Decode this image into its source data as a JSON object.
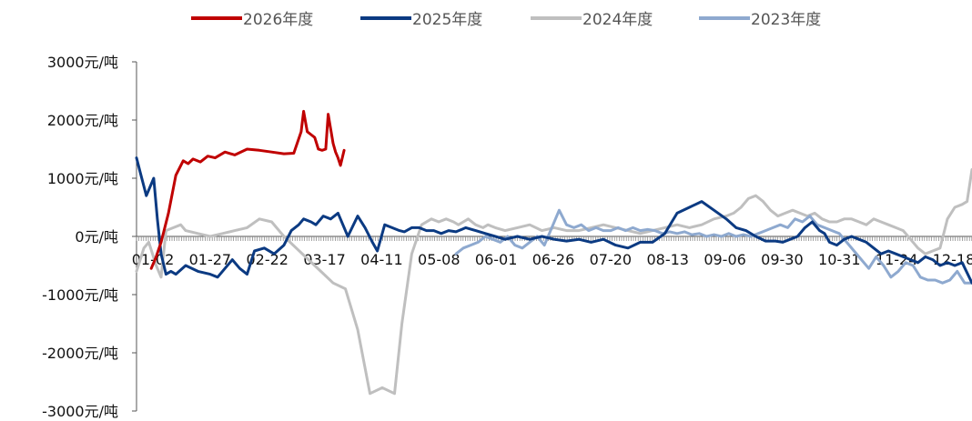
{
  "chart_data": {
    "type": "line",
    "title": "",
    "xlabel": "",
    "ylabel": "",
    "ylim": [
      -3000,
      3000
    ],
    "yticks": [
      {
        "value": 3000,
        "label": "3000元/吨"
      },
      {
        "value": 2000,
        "label": "2000元/吨"
      },
      {
        "value": 1000,
        "label": "1000元/吨"
      },
      {
        "value": 0,
        "label": "0元/吨"
      },
      {
        "value": -1000,
        "label": "-1000元/吨"
      },
      {
        "value": -2000,
        "label": "-2000元/吨"
      },
      {
        "value": -3000,
        "label": "-3000元/吨"
      }
    ],
    "xticks": [
      "01-02",
      "01-27",
      "02-22",
      "03-17",
      "04-11",
      "05-08",
      "06-01",
      "06-26",
      "07-20",
      "08-13",
      "09-06",
      "09-30",
      "10-31",
      "11-24",
      "12-18"
    ],
    "legend_position": "top",
    "grid": false,
    "series": [
      {
        "name": "2026年度",
        "color": "#C00000",
        "x": [
          0.6,
          0.8,
          1.0,
          1.3,
          1.6,
          1.9,
          2.1,
          2.3,
          2.6,
          2.9,
          3.2,
          3.6,
          4.0,
          4.5,
          5.0,
          5.5,
          6.0,
          6.4,
          6.7,
          6.8,
          6.95,
          7.1,
          7.25,
          7.4,
          7.55,
          7.7,
          7.8,
          7.9,
          8.0,
          8.1,
          8.2,
          8.3,
          8.45
        ],
        "values": [
          -550,
          -350,
          -100,
          400,
          1050,
          1300,
          1250,
          1330,
          1280,
          1380,
          1350,
          1450,
          1400,
          1500,
          1480,
          1450,
          1420,
          1430,
          1800,
          2150,
          1800,
          1750,
          1700,
          1500,
          1480,
          1500,
          2100,
          1850,
          1600,
          1450,
          1350,
          1220,
          1480
        ]
      },
      {
        "name": "2025年度",
        "color": "#0B3A82",
        "x": [
          0.0,
          0.15,
          0.4,
          0.7,
          0.85,
          1.0,
          1.2,
          1.4,
          1.6,
          2.0,
          2.5,
          3.0,
          3.3,
          3.6,
          3.9,
          4.2,
          4.5,
          4.8,
          5.2,
          5.6,
          6.0,
          6.3,
          6.6,
          6.8,
          7.1,
          7.3,
          7.6,
          7.9,
          8.2,
          8.6,
          9.0,
          9.3,
          9.6,
          9.8,
          10.1,
          10.4,
          10.7,
          10.9,
          11.2,
          11.5,
          11.8,
          12.1,
          12.4,
          12.7,
          13.0,
          13.4,
          13.8,
          14.2,
          14.6,
          15.0,
          15.5,
          16.0,
          16.5,
          17.0,
          17.5,
          18.0,
          18.5,
          19.0,
          19.5,
          20.0,
          20.5,
          21.0,
          21.5,
          22.0,
          22.5,
          23.0,
          23.5,
          24.0,
          24.4,
          24.8,
          25.2,
          25.6,
          26.0,
          26.3,
          26.6,
          26.9,
          27.2,
          27.5,
          27.8,
          28.0,
          28.2,
          28.5,
          28.8,
          29.1,
          29.4,
          29.7,
          30.0,
          30.3,
          30.6,
          30.9,
          31.2,
          31.5,
          31.8,
          32.1,
          32.4,
          32.7,
          33.0,
          33.3,
          33.6,
          34.0
        ],
        "values": [
          1350,
          1100,
          700,
          1000,
          300,
          -300,
          -650,
          -600,
          -650,
          -500,
          -600,
          -650,
          -700,
          -550,
          -400,
          -550,
          -650,
          -250,
          -200,
          -300,
          -150,
          100,
          200,
          300,
          250,
          200,
          350,
          300,
          400,
          0,
          350,
          150,
          -100,
          -250,
          200,
          150,
          100,
          80,
          150,
          150,
          100,
          100,
          50,
          100,
          80,
          150,
          100,
          50,
          0,
          -50,
          0,
          -50,
          0,
          -50,
          -80,
          -50,
          -100,
          -50,
          -150,
          -200,
          -100,
          -100,
          50,
          400,
          500,
          600,
          450,
          300,
          150,
          100,
          0,
          -80,
          -80,
          -100,
          -50,
          0,
          150,
          250,
          100,
          50,
          -100,
          -150,
          -50,
          0,
          -50,
          -100,
          -200,
          -300,
          -250,
          -300,
          -350,
          -400,
          -450,
          -350,
          -400,
          -500,
          -450,
          -500,
          -450,
          -800
        ]
      },
      {
        "name": "2024年度",
        "color": "#BFBFBF",
        "x": [
          0.0,
          0.3,
          0.5,
          0.8,
          1.0,
          1.2,
          1.5,
          1.8,
          2.0,
          2.5,
          3.0,
          3.5,
          4.0,
          4.5,
          5.0,
          5.5,
          6.0,
          6.5,
          7.0,
          7.5,
          8.0,
          8.5,
          9.0,
          9.5,
          10.0,
          10.5,
          10.8,
          11.2,
          11.6,
          12.0,
          12.3,
          12.6,
          12.9,
          13.1,
          13.3,
          13.5,
          13.8,
          14.1,
          14.3,
          14.6,
          15.0,
          15.5,
          16.0,
          16.5,
          17.0,
          17.5,
          18.0,
          18.5,
          19.0,
          19.5,
          20.0,
          20.5,
          21.0,
          21.5,
          22.0,
          22.5,
          23.0,
          23.5,
          24.0,
          24.3,
          24.6,
          24.9,
          25.2,
          25.5,
          25.8,
          26.1,
          26.4,
          26.7,
          27.0,
          27.3,
          27.6,
          27.9,
          28.2,
          28.5,
          28.8,
          29.1,
          29.4,
          29.7,
          30.0,
          30.3,
          30.6,
          30.9,
          31.2,
          31.5,
          31.8,
          32.1,
          32.4,
          32.7,
          33.0,
          33.3,
          33.6,
          33.8,
          34.0
        ],
        "values": [
          -600,
          -200,
          -100,
          -500,
          -700,
          100,
          150,
          200,
          100,
          50,
          0,
          50,
          100,
          150,
          300,
          250,
          0,
          -200,
          -400,
          -600,
          -800,
          -900,
          -1600,
          -2700,
          -2600,
          -2700,
          -1500,
          -300,
          200,
          300,
          250,
          300,
          250,
          200,
          250,
          300,
          200,
          150,
          200,
          150,
          100,
          150,
          200,
          100,
          150,
          100,
          100,
          150,
          200,
          150,
          100,
          50,
          100,
          150,
          200,
          150,
          200,
          300,
          350,
          400,
          500,
          650,
          700,
          600,
          450,
          350,
          400,
          450,
          400,
          350,
          400,
          300,
          250,
          250,
          300,
          300,
          250,
          200,
          300,
          250,
          200,
          150,
          100,
          -50,
          -200,
          -300,
          -250,
          -200,
          300,
          500,
          550,
          600,
          1150
        ]
      },
      {
        "name": "2023年度",
        "color": "#8EA9CF",
        "x": [
          13.0,
          13.3,
          13.6,
          13.9,
          14.2,
          14.5,
          14.8,
          15.1,
          15.4,
          15.7,
          16.0,
          16.3,
          16.6,
          16.9,
          17.2,
          17.5,
          17.8,
          18.1,
          18.4,
          18.7,
          19.0,
          19.3,
          19.6,
          19.9,
          20.2,
          20.5,
          20.8,
          21.1,
          21.4,
          21.7,
          22.0,
          22.3,
          22.6,
          22.9,
          23.2,
          23.5,
          23.8,
          24.1,
          24.4,
          24.7,
          25.0,
          25.3,
          25.6,
          25.9,
          26.2,
          26.5,
          26.8,
          27.1,
          27.4,
          27.7,
          28.0,
          28.3,
          28.6,
          28.9,
          29.2,
          29.5,
          29.8,
          30.1,
          30.4,
          30.7,
          31.0,
          31.3,
          31.6,
          31.9,
          32.2,
          32.5,
          32.8,
          33.1,
          33.4,
          33.7,
          34.0
        ],
        "values": [
          -300,
          -200,
          -150,
          -100,
          0,
          -50,
          -100,
          0,
          -150,
          -200,
          -100,
          0,
          -150,
          150,
          450,
          200,
          150,
          200,
          100,
          150,
          100,
          100,
          150,
          100,
          150,
          100,
          120,
          100,
          50,
          80,
          50,
          80,
          30,
          50,
          0,
          30,
          0,
          50,
          0,
          30,
          0,
          50,
          100,
          150,
          200,
          150,
          300,
          250,
          350,
          200,
          150,
          100,
          50,
          -100,
          -250,
          -400,
          -550,
          -350,
          -500,
          -700,
          -600,
          -450,
          -500,
          -700,
          -750,
          -750,
          -800,
          -750,
          -600,
          -800,
          -800
        ]
      }
    ]
  }
}
